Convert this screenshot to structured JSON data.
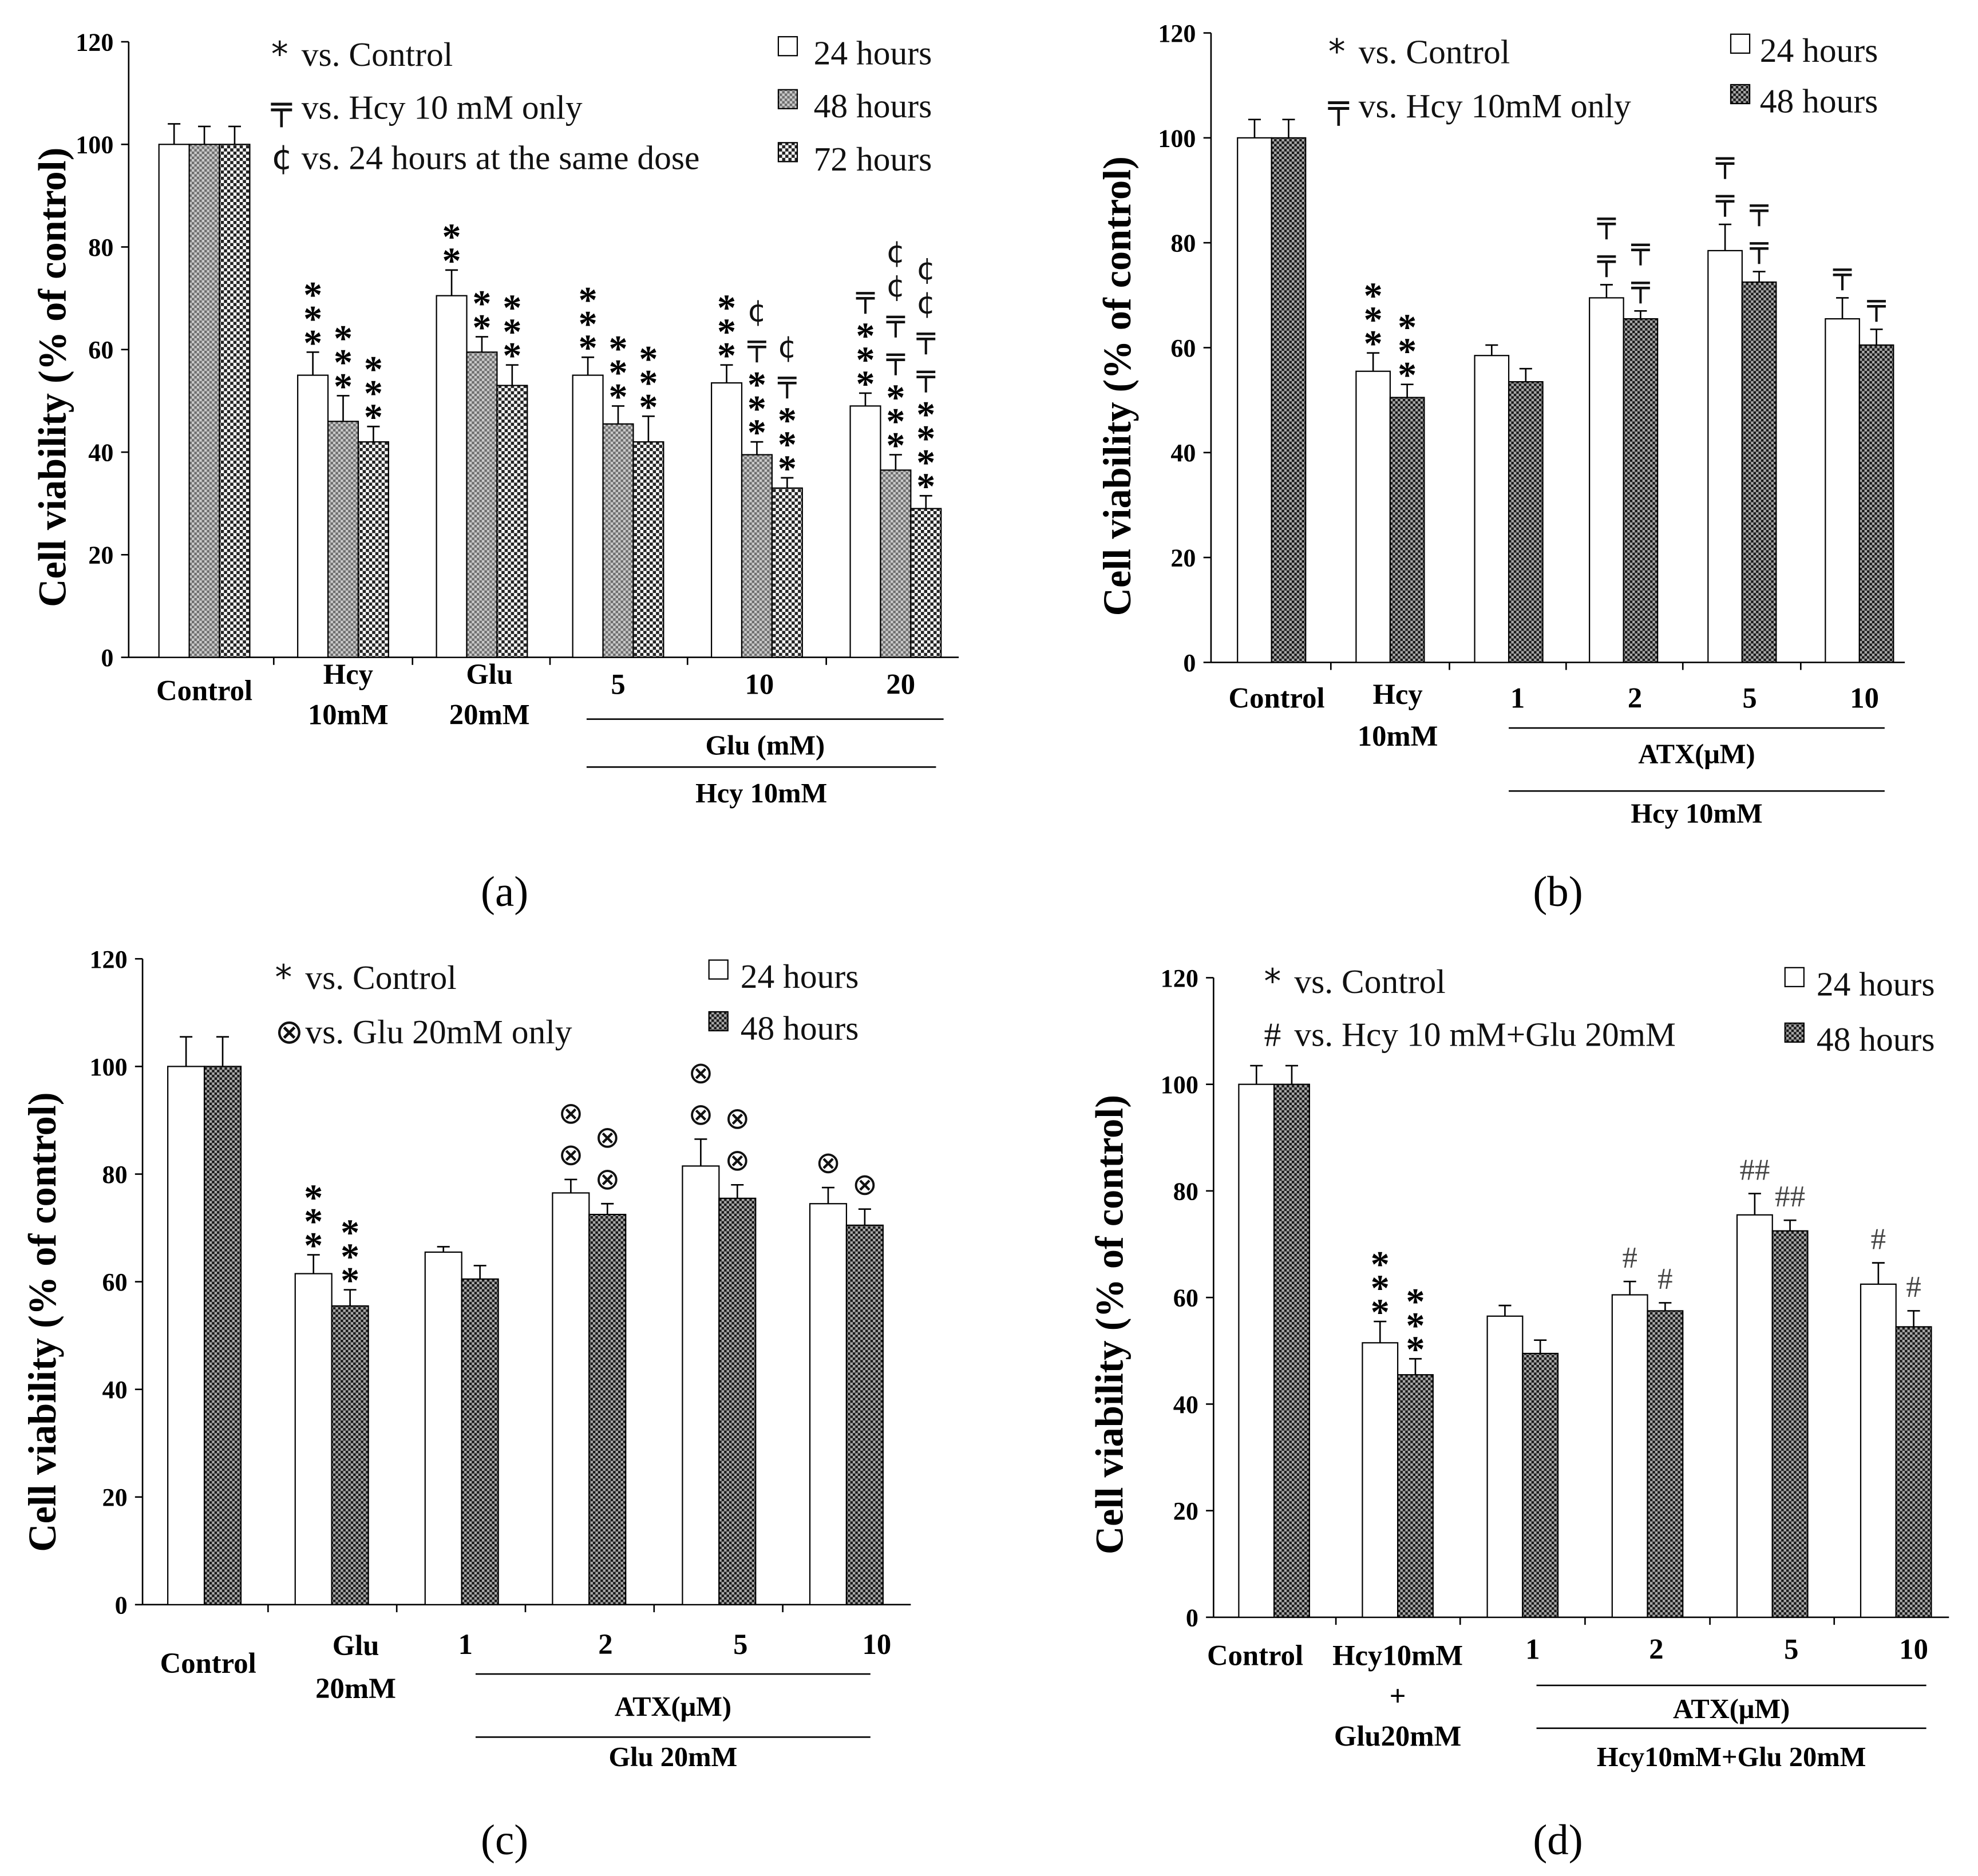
{
  "chart_data": [
    {
      "panel_label": "(a)",
      "type": "bar",
      "ylabel": "Cell viability (% of control)",
      "ylim": [
        0,
        120
      ],
      "yticks": [
        0,
        20,
        40,
        60,
        80,
        100,
        120
      ],
      "categories": [
        [
          "Control"
        ],
        [
          "Hcy",
          "10mM"
        ],
        [
          "Glu",
          "20mM"
        ],
        [
          "5"
        ],
        [
          "10"
        ],
        [
          "20"
        ]
      ],
      "category_groups": [
        {
          "label": "Glu (mM)",
          "from": 3,
          "to": 5
        },
        {
          "label": "Hcy 10mM",
          "from": 3,
          "to": 5
        }
      ],
      "legend_notes": [
        {
          "symbol": "*",
          "text": "vs. Control"
        },
        {
          "symbol": "╤",
          "text": "vs. Hcy 10 mM only"
        },
        {
          "symbol": "¢",
          "text": "vs. 24 hours at the same dose"
        }
      ],
      "series": [
        {
          "name": "24 hours",
          "fill": "white",
          "values": [
            100,
            55,
            70.5,
            55,
            53.5,
            49
          ],
          "errors": [
            4,
            4.5,
            5,
            3.5,
            3.5,
            2.5
          ],
          "annotations": [
            [],
            [
              "*",
              "*",
              "*"
            ],
            [
              "*",
              "*"
            ],
            [
              "*",
              "*",
              "*"
            ],
            [
              "*",
              "*",
              "*"
            ],
            [
              "╤",
              "*",
              "*",
              "*"
            ]
          ]
        },
        {
          "name": "48 hours",
          "fill": "dots",
          "values": [
            100,
            46,
            59.5,
            45.5,
            39.5,
            36.5
          ],
          "errors": [
            3.5,
            5,
            3,
            3.5,
            2.5,
            3
          ],
          "annotations": [
            [],
            [
              "*",
              "*",
              "*"
            ],
            [
              "*",
              "*"
            ],
            [
              "*",
              "*",
              "*"
            ],
            [
              "¢",
              "╤",
              "*",
              "*",
              "*"
            ],
            [
              "¢",
              "¢",
              "╤",
              "╤",
              "*",
              "*",
              "*"
            ]
          ]
        },
        {
          "name": "72 hours",
          "fill": "checker",
          "values": [
            100,
            42,
            53,
            42,
            33,
            29
          ],
          "errors": [
            3.5,
            3,
            4,
            5,
            2,
            2.5
          ],
          "annotations": [
            [],
            [
              "*",
              "*",
              "*"
            ],
            [
              "*",
              "*",
              "*"
            ],
            [
              "*",
              "*",
              "*"
            ],
            [
              "¢",
              "╤",
              "*",
              "*",
              "*"
            ],
            [
              "¢",
              "¢",
              "╤",
              "╤",
              "*",
              "*",
              "*",
              "*"
            ]
          ]
        }
      ]
    },
    {
      "panel_label": "(b)",
      "type": "bar",
      "ylabel": "Cell viability (% of control)",
      "ylim": [
        0,
        120
      ],
      "yticks": [
        0,
        20,
        40,
        60,
        80,
        100,
        120
      ],
      "categories": [
        [
          "Control"
        ],
        [
          "Hcy",
          "10mM"
        ],
        [
          "1"
        ],
        [
          "2"
        ],
        [
          "5"
        ],
        [
          "10"
        ]
      ],
      "category_groups": [
        {
          "label": "ATX(μM)",
          "from": 2,
          "to": 5
        },
        {
          "label": "Hcy 10mM",
          "from": 2,
          "to": 5
        }
      ],
      "legend_notes": [
        {
          "symbol": "*",
          "text": "vs. Control"
        },
        {
          "symbol": "╤",
          "text": "vs. Hcy 10mM only"
        }
      ],
      "series": [
        {
          "name": "24 hours",
          "fill": "white",
          "values": [
            100,
            55.5,
            58.5,
            69.5,
            78.5,
            65.5
          ],
          "errors": [
            3.5,
            3.5,
            2,
            2.5,
            5,
            4
          ],
          "annotations": [
            [],
            [
              "*",
              "*",
              "*"
            ],
            [],
            [
              "╤",
              "╤"
            ],
            [
              "╤",
              "╤"
            ],
            [
              "╤"
            ]
          ]
        },
        {
          "name": "48 hours",
          "fill": "checker-dark",
          "values": [
            100,
            50.5,
            53.5,
            65.5,
            72.5,
            60.5
          ],
          "errors": [
            3.5,
            2.5,
            2.5,
            1.5,
            2,
            3
          ],
          "annotations": [
            [],
            [
              "*",
              "*",
              "*"
            ],
            [],
            [
              "╤",
              "╤"
            ],
            [
              "╤",
              "╤"
            ],
            [
              "╤"
            ]
          ]
        }
      ]
    },
    {
      "panel_label": "(c)",
      "type": "bar",
      "ylabel": "Cell viability (% of control)",
      "ylim": [
        0,
        120
      ],
      "yticks": [
        0,
        20,
        40,
        60,
        80,
        100,
        120
      ],
      "categories": [
        [
          "Control"
        ],
        [
          "Glu",
          "20mM"
        ],
        [
          "1"
        ],
        [
          "2"
        ],
        [
          "5"
        ],
        [
          "10"
        ]
      ],
      "category_groups": [
        {
          "label": "ATX(μM)",
          "from": 2,
          "to": 5
        },
        {
          "label": "Glu 20mM",
          "from": 2,
          "to": 5
        }
      ],
      "legend_notes": [
        {
          "symbol": "*",
          "text": "vs. Control"
        },
        {
          "symbol": "⊗",
          "text": "vs. Glu 20mM only"
        }
      ],
      "series": [
        {
          "name": "24 hours",
          "fill": "white",
          "values": [
            100,
            61.5,
            65.5,
            76.5,
            81.5,
            74.5
          ],
          "errors": [
            5.5,
            3.5,
            1,
            2.5,
            5,
            3
          ],
          "annotations": [
            [],
            [
              "*",
              "*",
              "*"
            ],
            [],
            [
              "⊗",
              "⊗"
            ],
            [
              "⊗",
              "⊗"
            ],
            [
              "⊗"
            ]
          ]
        },
        {
          "name": "48 hours",
          "fill": "checker-dark",
          "values": [
            100,
            55.5,
            60.5,
            72.5,
            75.5,
            70.5
          ],
          "errors": [
            5.5,
            3,
            2.5,
            2,
            2.5,
            3
          ],
          "annotations": [
            [],
            [
              "*",
              "*",
              "*"
            ],
            [],
            [
              "⊗",
              "⊗"
            ],
            [
              "⊗",
              "⊗"
            ],
            [
              "⊗"
            ]
          ]
        }
      ]
    },
    {
      "panel_label": "(d)",
      "type": "bar",
      "ylabel": "Cell viability (% of control)",
      "ylim": [
        0,
        120
      ],
      "yticks": [
        0,
        20,
        40,
        60,
        80,
        100,
        120
      ],
      "categories": [
        [
          "Control"
        ],
        [
          "Hcy10mM",
          "+",
          "Glu20mM"
        ],
        [
          "1"
        ],
        [
          "2"
        ],
        [
          "5"
        ],
        [
          "10"
        ]
      ],
      "category_groups": [
        {
          "label": "ATX(μM)",
          "from": 2,
          "to": 5
        },
        {
          "label": "Hcy10mM+Glu 20mM",
          "from": 2,
          "to": 5
        }
      ],
      "legend_notes": [
        {
          "symbol": "*",
          "text": "vs. Control"
        },
        {
          "symbol": "#",
          "text": "vs. Hcy 10 mM+Glu 20mM"
        }
      ],
      "series": [
        {
          "name": "24 hours",
          "fill": "white",
          "values": [
            100,
            51.5,
            56.5,
            60.5,
            75.5,
            62.5
          ],
          "errors": [
            3.5,
            4,
            2,
            2.5,
            4,
            4
          ],
          "annotations": [
            [],
            [
              "*",
              "*",
              "*"
            ],
            [],
            [
              "#"
            ],
            [
              "##"
            ],
            [
              "#"
            ]
          ]
        },
        {
          "name": "48 hours",
          "fill": "checker-dark",
          "values": [
            100,
            45.5,
            49.5,
            57.5,
            72.5,
            54.5
          ],
          "errors": [
            3.5,
            3,
            2.5,
            1.5,
            2,
            3
          ],
          "annotations": [
            [],
            [
              "*",
              "*",
              "*"
            ],
            [],
            [
              "#"
            ],
            [
              "##"
            ],
            [
              "#"
            ]
          ]
        }
      ]
    }
  ]
}
